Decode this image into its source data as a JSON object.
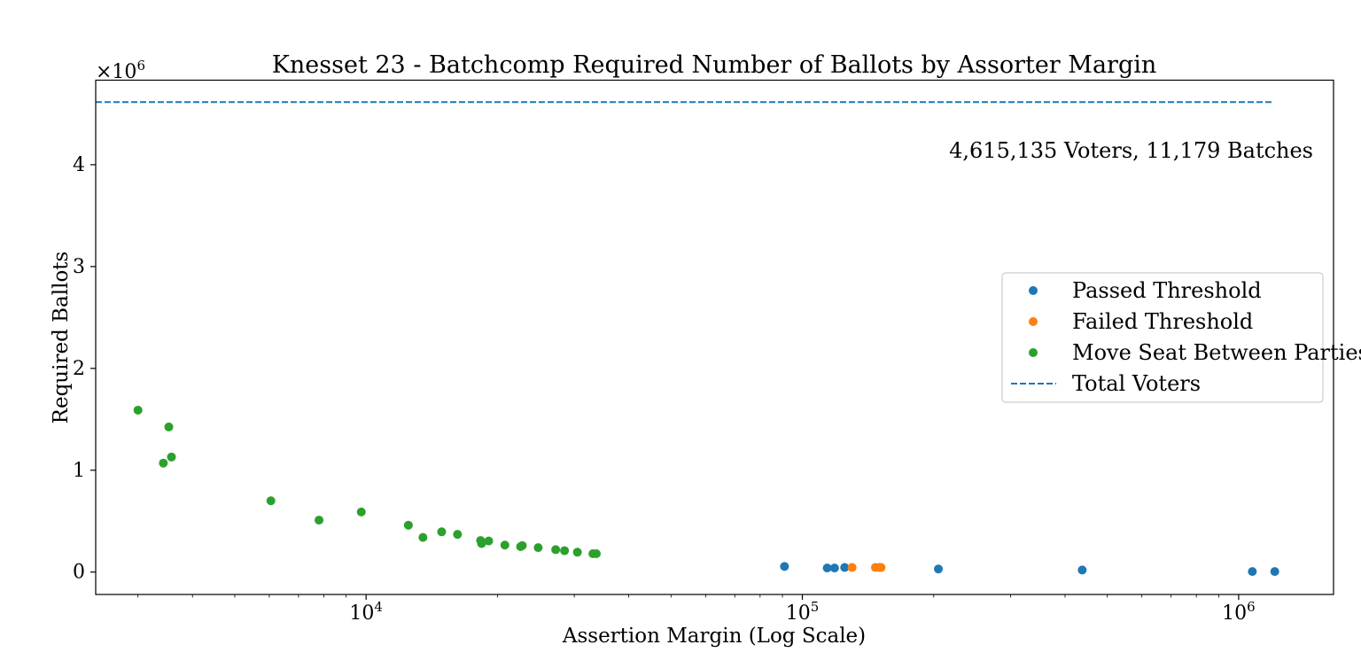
{
  "colors": {
    "passed": "#1f77b4",
    "failed": "#ff7f0e",
    "move": "#2ca02c",
    "total": "#1f77b4"
  },
  "chart_data": {
    "type": "scatter",
    "title": "Knesset 23 - Batchcomp Required Number of Ballots by Assorter Margin",
    "xlabel": "Assertion Margin (Log Scale)",
    "ylabel": "Required Ballots",
    "y_multiplier_label": "×10",
    "y_multiplier_exp": "6",
    "x_scale": "log",
    "xlim": [
      2400,
      1650000
    ],
    "ylim": [
      -220000,
      4830000
    ],
    "grid": false,
    "legend_placement": "center-right",
    "annotation": "4,615,135 Voters, 11,179 Batches",
    "x_ticks": [
      {
        "value": 10000,
        "base": "10",
        "exp": "4"
      },
      {
        "value": 100000,
        "base": "10",
        "exp": "5"
      },
      {
        "value": 1000000,
        "base": "10",
        "exp": "6"
      }
    ],
    "y_ticks": [
      {
        "value": 0,
        "label": "0"
      },
      {
        "value": 1000000,
        "label": "1"
      },
      {
        "value": 2000000,
        "label": "2"
      },
      {
        "value": 3000000,
        "label": "3"
      },
      {
        "value": 4000000,
        "label": "4"
      }
    ],
    "reference_line": {
      "name": "Total Voters",
      "value": 4615135,
      "x_range": [
        2400,
        1200000
      ]
    },
    "series": [
      {
        "name": "Passed Threshold",
        "color_key": "passed",
        "points": [
          [
            91000,
            55000
          ],
          [
            114000,
            40000
          ],
          [
            118500,
            40000
          ],
          [
            125000,
            45000
          ],
          [
            205000,
            30000
          ],
          [
            438000,
            20000
          ],
          [
            1075000,
            5000
          ],
          [
            1210000,
            5000
          ]
        ]
      },
      {
        "name": "Failed Threshold",
        "color_key": "failed",
        "points": [
          [
            130000,
            45000
          ],
          [
            147000,
            45000
          ],
          [
            150000,
            45000
          ],
          [
            151500,
            45000
          ]
        ]
      },
      {
        "name": "Move Seat Between Parties",
        "color_key": "move",
        "points": [
          [
            3000,
            1590000
          ],
          [
            3430,
            1070000
          ],
          [
            3530,
            1425000
          ],
          [
            3580,
            1130000
          ],
          [
            6050,
            700000
          ],
          [
            7800,
            510000
          ],
          [
            9750,
            590000
          ],
          [
            12500,
            460000
          ],
          [
            13500,
            340000
          ],
          [
            14900,
            395000
          ],
          [
            16200,
            370000
          ],
          [
            18300,
            310000
          ],
          [
            18400,
            280000
          ],
          [
            19100,
            305000
          ],
          [
            20800,
            265000
          ],
          [
            22600,
            250000
          ],
          [
            22800,
            260000
          ],
          [
            24800,
            240000
          ],
          [
            27200,
            220000
          ],
          [
            28500,
            210000
          ],
          [
            30500,
            195000
          ],
          [
            33100,
            180000
          ],
          [
            33700,
            180000
          ]
        ]
      }
    ]
  }
}
